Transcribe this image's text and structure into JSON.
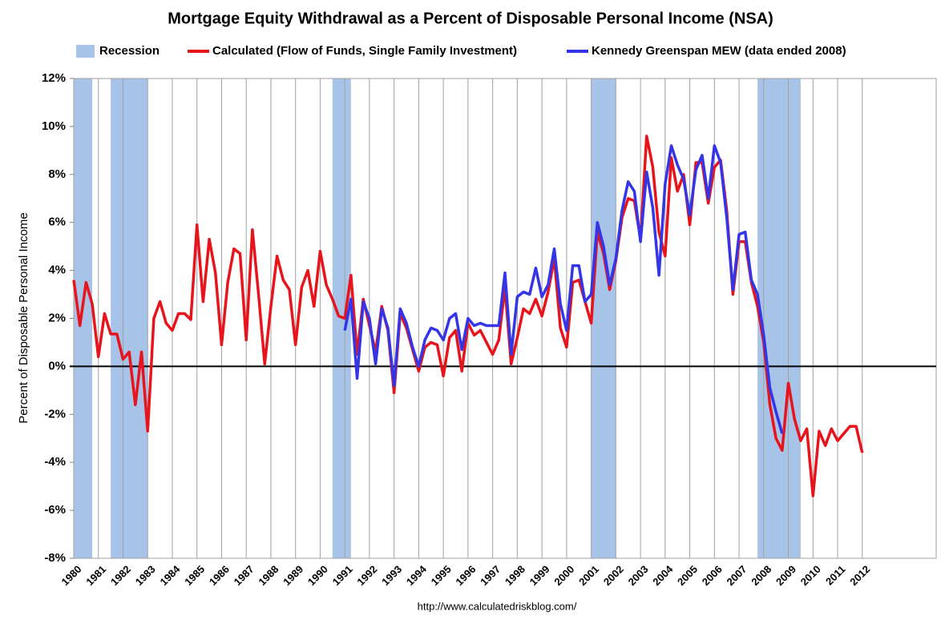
{
  "chart_data": {
    "type": "line",
    "title": "Mortgage Equity Withdrawal as a Percent of Disposable Personal Income (NSA)",
    "ylabel": "Percent of Disposable Personal Income",
    "source": "http://www.calculatedriskblog.com/",
    "recession_label": "Recession",
    "recession_color": "#a7c3e8",
    "recessions": [
      [
        1980,
        1980.75
      ],
      [
        1981.5,
        1983
      ],
      [
        1990.5,
        1991.25
      ],
      [
        2001,
        2002
      ],
      [
        2007.75,
        2009.5
      ]
    ],
    "xlim": [
      1980,
      2015
    ],
    "xticks": [
      1980,
      1981,
      1982,
      1983,
      1984,
      1985,
      1986,
      1987,
      1988,
      1989,
      1990,
      1991,
      1992,
      1993,
      1994,
      1995,
      1996,
      1997,
      1998,
      1999,
      2000,
      2001,
      2002,
      2003,
      2004,
      2005,
      2006,
      2007,
      2008,
      2009,
      2010,
      2011,
      2012
    ],
    "ylim": [
      -8,
      12
    ],
    "yticks": [
      {
        "value": -8,
        "label": "-8%"
      },
      {
        "value": -6,
        "label": "-6%"
      },
      {
        "value": -4,
        "label": "-4%"
      },
      {
        "value": -2,
        "label": "-2%"
      },
      {
        "value": 0,
        "label": "0%"
      },
      {
        "value": 2,
        "label": "2%"
      },
      {
        "value": 4,
        "label": "4%"
      },
      {
        "value": 6,
        "label": "6%"
      },
      {
        "value": 8,
        "label": "8%"
      },
      {
        "value": 10,
        "label": "10%"
      },
      {
        "value": 12,
        "label": "12%"
      }
    ],
    "grid": true,
    "series": [
      {
        "name": "Calculated (Flow of Funds, Single Family Investment)",
        "color": "#e8141c",
        "x": [
          1980,
          1980.25,
          1980.5,
          1980.75,
          1981,
          1981.25,
          1981.5,
          1981.75,
          1982,
          1982.25,
          1982.5,
          1982.75,
          1983,
          1983.25,
          1983.5,
          1983.75,
          1984,
          1984.25,
          1984.5,
          1984.75,
          1985,
          1985.25,
          1985.5,
          1985.75,
          1986,
          1986.25,
          1986.5,
          1986.75,
          1987,
          1987.25,
          1987.5,
          1987.75,
          1988,
          1988.25,
          1988.5,
          1988.75,
          1989,
          1989.25,
          1989.5,
          1989.75,
          1990,
          1990.25,
          1990.5,
          1990.75,
          1991,
          1991.25,
          1991.5,
          1991.75,
          1992,
          1992.25,
          1992.5,
          1992.75,
          1993,
          1993.25,
          1993.5,
          1993.75,
          1994,
          1994.25,
          1994.5,
          1994.75,
          1995,
          1995.25,
          1995.5,
          1995.75,
          1996,
          1996.25,
          1996.5,
          1996.75,
          1997,
          1997.25,
          1997.5,
          1997.75,
          1998,
          1998.25,
          1998.5,
          1998.75,
          1999,
          1999.25,
          1999.5,
          1999.75,
          2000,
          2000.25,
          2000.5,
          2000.75,
          2001,
          2001.25,
          2001.5,
          2001.75,
          2002,
          2002.25,
          2002.5,
          2002.75,
          2003,
          2003.25,
          2003.5,
          2003.75,
          2004,
          2004.25,
          2004.5,
          2004.75,
          2005,
          2005.25,
          2005.5,
          2005.75,
          2006,
          2006.25,
          2006.5,
          2006.75,
          2007,
          2007.25,
          2007.5,
          2007.75,
          2008,
          2008.25,
          2008.5,
          2008.75,
          2009,
          2009.25,
          2009.5,
          2009.75,
          2010,
          2010.25,
          2010.5,
          2010.75,
          2011,
          2011.25,
          2011.5,
          2011.75,
          2012
        ],
        "values": [
          3.6,
          1.7,
          3.5,
          2.6,
          0.4,
          2.2,
          1.35,
          1.35,
          0.3,
          0.6,
          -1.6,
          0.6,
          -2.7,
          2.0,
          2.7,
          1.8,
          1.5,
          2.2,
          2.2,
          1.95,
          5.9,
          2.7,
          5.3,
          3.9,
          0.9,
          3.5,
          4.9,
          4.7,
          1.1,
          5.7,
          3.0,
          0.1,
          2.5,
          4.6,
          3.6,
          3.2,
          0.9,
          3.3,
          4.0,
          2.5,
          4.8,
          3.4,
          2.8,
          2.1,
          2.0,
          3.8,
          0.5,
          2.8,
          1.7,
          0.6,
          2.5,
          1.5,
          -1.1,
          2.2,
          1.6,
          0.7,
          -0.2,
          0.8,
          1.0,
          0.9,
          -0.4,
          1.2,
          1.5,
          -0.2,
          1.8,
          1.3,
          1.5,
          1.0,
          0.5,
          1.1,
          3.3,
          0.1,
          1.2,
          2.4,
          2.2,
          2.8,
          2.1,
          3.1,
          4.5,
          1.6,
          0.8,
          3.5,
          3.6,
          2.7,
          1.8,
          5.6,
          4.7,
          3.2,
          4.4,
          6.2,
          7.0,
          6.9,
          5.3,
          9.6,
          8.3,
          5.6,
          4.6,
          8.7,
          7.3,
          8.0,
          5.9,
          8.5,
          8.5,
          6.8,
          8.3,
          8.6,
          6.5,
          3.0,
          5.2,
          5.2,
          3.5,
          2.5,
          1.0,
          -1.6,
          -3.0,
          -3.5,
          -0.7,
          -2.2,
          -3.1,
          -2.6,
          -5.4,
          -2.7,
          -3.3,
          -2.6,
          -3.1,
          -2.8,
          -2.5,
          -2.5,
          -3.6
        ]
      },
      {
        "name": "Kennedy Greenspan MEW (data ended 2008)",
        "color": "#3535e8",
        "x": [
          1991,
          1991.25,
          1991.5,
          1991.75,
          1992,
          1992.25,
          1992.5,
          1992.75,
          1993,
          1993.25,
          1993.5,
          1993.75,
          1994,
          1994.25,
          1994.5,
          1994.75,
          1995,
          1995.25,
          1995.5,
          1995.75,
          1996,
          1996.25,
          1996.5,
          1996.75,
          1997,
          1997.25,
          1997.5,
          1997.75,
          1998,
          1998.25,
          1998.5,
          1998.75,
          1999,
          1999.25,
          1999.5,
          1999.75,
          2000,
          2000.25,
          2000.5,
          2000.75,
          2001,
          2001.25,
          2001.5,
          2001.75,
          2002,
          2002.25,
          2002.5,
          2002.75,
          2003,
          2003.25,
          2003.5,
          2003.75,
          2004,
          2004.25,
          2004.5,
          2004.75,
          2005,
          2005.25,
          2005.5,
          2005.75,
          2006,
          2006.25,
          2006.5,
          2006.75,
          2007,
          2007.25,
          2007.5,
          2007.75,
          2008,
          2008.25,
          2008.5,
          2008.75
        ],
        "values": [
          1.5,
          2.8,
          -0.5,
          2.7,
          2.0,
          0.1,
          2.4,
          1.6,
          -0.8,
          2.4,
          1.8,
          0.8,
          0.0,
          1.1,
          1.6,
          1.5,
          1.1,
          2.0,
          2.2,
          0.7,
          2.0,
          1.7,
          1.8,
          1.7,
          1.7,
          1.7,
          3.9,
          0.5,
          2.9,
          3.1,
          3.0,
          4.1,
          2.9,
          3.4,
          4.9,
          2.6,
          1.5,
          4.2,
          4.2,
          2.7,
          3.0,
          6.0,
          5.0,
          3.4,
          4.5,
          6.5,
          7.7,
          7.3,
          5.2,
          8.1,
          6.6,
          3.8,
          7.6,
          9.2,
          8.4,
          7.8,
          6.3,
          8.2,
          8.8,
          7.0,
          9.2,
          8.5,
          6.2,
          3.2,
          5.5,
          5.6,
          3.6,
          3.0,
          1.3,
          -0.9,
          -1.9,
          -2.8
        ]
      }
    ]
  }
}
